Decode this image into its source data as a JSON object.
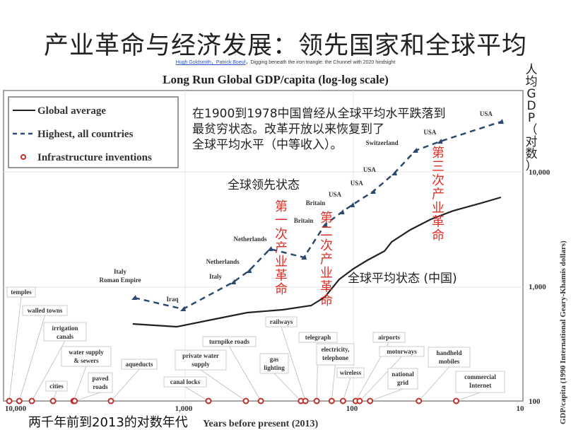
{
  "slide_title": "产业革命与经济发展：领先国家和全球平均",
  "citation": {
    "authors": "Hugh Goldsmith，Patrick Boeuf",
    "text": "，Digging beneath the iron triangle: the Chunnel with 2020 hindsight"
  },
  "annotations": {
    "paragraph": [
      "在1900到1978中国曾经从全球平均水平跌落到",
      "最贫穷状态。改革开放以来恢复到了",
      "全球平均水平（中等收入）。"
    ],
    "leading_state": "全球领先状态",
    "average_state": "全球平均状态 (中国)",
    "rev1": "第一次产业革命",
    "rev2": "第二次产业革命",
    "rev3": "第三次产业革命",
    "y_axis_zh": "人均GDP（对数）",
    "x_axis_zh": "两千年前到2013的对数年代"
  },
  "chart_data": {
    "type": "line",
    "title": "Long Run Global GDP/capita (log-log scale)",
    "xlabel": "Years before present (2013)",
    "ylabel": "GDP/capita (1990 International Geary-Khamis dollars)",
    "xscale": "log",
    "yscale": "log",
    "x_reversed": true,
    "xlim": [
      10000,
      10
    ],
    "ylim": [
      100,
      40000
    ],
    "x_ticks": [
      {
        "v": 10000,
        "label": "10,000"
      },
      {
        "v": 1000,
        "label": "1,000"
      },
      {
        "v": 100,
        "label": "100"
      },
      {
        "v": 10,
        "label": "10"
      }
    ],
    "y_ticks": [
      {
        "v": 10000,
        "label": "10,000"
      },
      {
        "v": 1000,
        "label": "1,000"
      },
      {
        "v": 100,
        "label": "100"
      }
    ],
    "legend": {
      "position": "top-left",
      "entries": [
        "Global average",
        "Highest, all countries",
        "Infrastructure inventions"
      ]
    },
    "series": [
      {
        "name": "Global average",
        "color": "#222222",
        "points": [
          [
            2010,
            471
          ],
          [
            1100,
            445
          ],
          [
            680,
            513
          ],
          [
            419,
            591
          ],
          [
            258,
            626
          ],
          [
            175,
            681
          ],
          [
            145,
            808
          ],
          [
            119,
            1153
          ],
          [
            98,
            1427
          ],
          [
            81,
            1692
          ],
          [
            64,
            2036
          ],
          [
            58,
            2447
          ],
          [
            45,
            3119
          ],
          [
            34,
            3855
          ],
          [
            25,
            4571
          ],
          [
            17,
            5346
          ],
          [
            13,
            5996
          ]
        ]
      },
      {
        "name": "Highest, all countries",
        "color": "#2d4a6e",
        "points": [
          [
            1968,
            797,
            "Italy, Roman Empire"
          ],
          [
            1010,
            635,
            "Iraq"
          ],
          [
            508,
            1089,
            "Italy"
          ],
          [
            410,
            1368,
            "Netherlands"
          ],
          [
            307,
            2125,
            "Netherlands"
          ],
          [
            193,
            1791,
            ""
          ],
          [
            145,
            3443,
            "Britain"
          ],
          [
            115,
            4446,
            "Britain"
          ],
          [
            100,
            5127,
            "USA"
          ],
          [
            75,
            6716,
            "USA"
          ],
          [
            56,
            9725,
            "USA"
          ],
          [
            42,
            15310,
            "Switzerland"
          ],
          [
            30,
            18400,
            "USA"
          ],
          [
            13,
            27400,
            "USA"
          ]
        ]
      },
      {
        "name": "Infrastructure inventions",
        "color": "#c0302a",
        "points": [
          [
            10900,
            "temples"
          ],
          [
            9500,
            "walled towns"
          ],
          [
            8000,
            "irrigation canals"
          ],
          [
            5980,
            "cities"
          ],
          [
            4520,
            "water supply & sewers"
          ],
          [
            4450,
            "paved roads"
          ],
          [
            2710,
            "aqueducts"
          ],
          [
            713,
            "canal locks"
          ],
          [
            427,
            "private water supply"
          ],
          [
            348,
            "turnpike roads"
          ],
          [
            201,
            "gas lighting"
          ],
          [
            189,
            "railways"
          ],
          [
            162,
            "telegraph"
          ],
          [
            132,
            "electricity, telephone"
          ],
          [
            113,
            "wireless"
          ],
          [
            95,
            "airports"
          ],
          [
            90,
            "motorways"
          ],
          [
            78,
            "national grid"
          ],
          [
            40,
            "handheld mobiles"
          ],
          [
            24,
            "commercial Internet"
          ]
        ]
      }
    ]
  }
}
